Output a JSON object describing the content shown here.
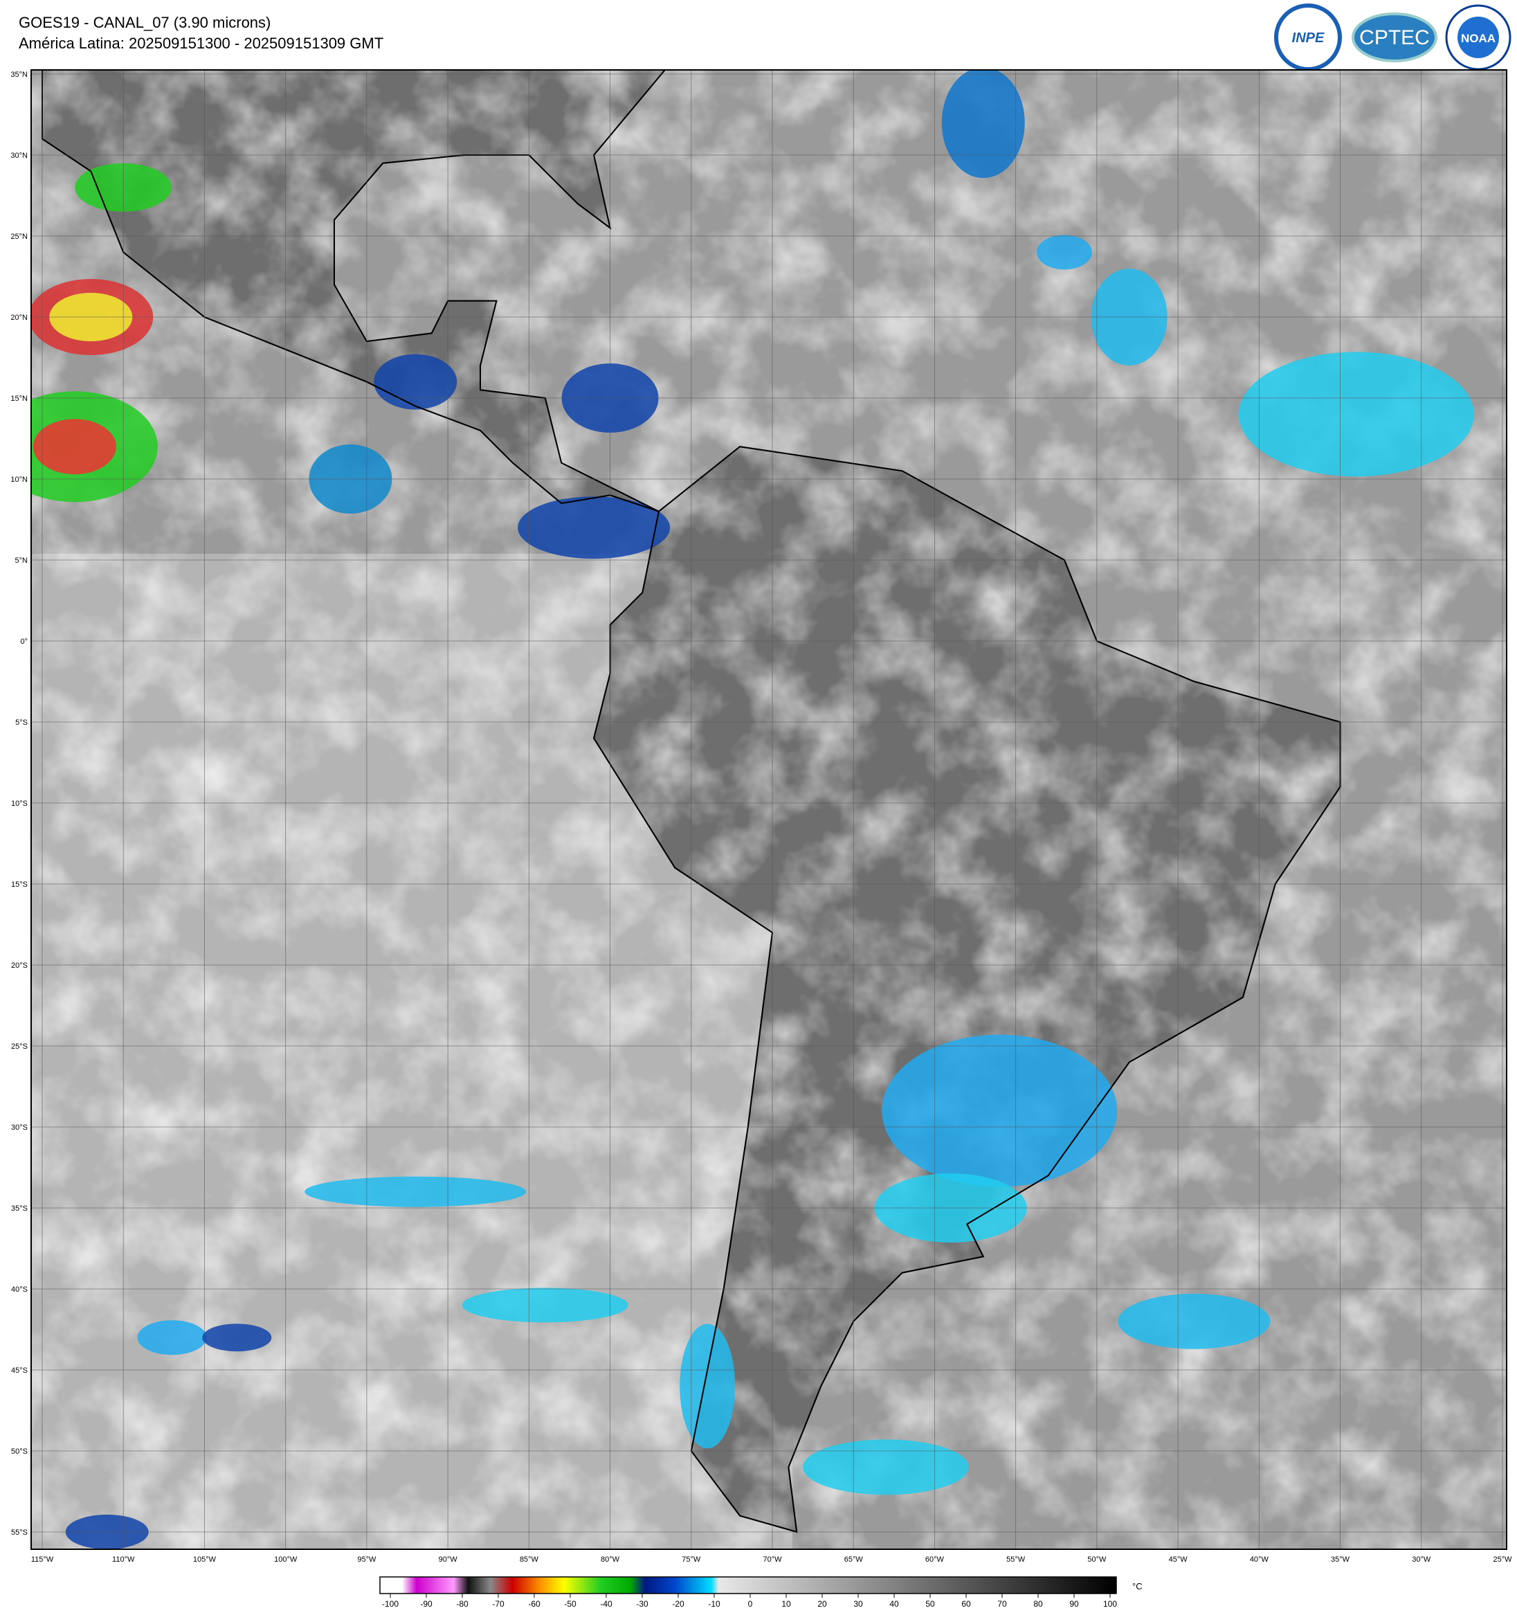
{
  "header": {
    "title": "GOES19 - CANAL_07 (3.90 microns)",
    "subtitle": "América Latina: 202509151300 - 202509151309 GMT"
  },
  "logos": [
    "INPE",
    "CPTEC",
    "NOAA"
  ],
  "map": {
    "lat_labels": [
      "35°N",
      "30°N",
      "25°N",
      "20°N",
      "15°N",
      "10°N",
      "5°N",
      "0°",
      "5°S",
      "10°S",
      "15°S",
      "20°S",
      "25°S",
      "30°S",
      "35°S",
      "40°S",
      "45°S",
      "50°S",
      "55°S"
    ],
    "lon_labels": [
      "115°W",
      "110°W",
      "105°W",
      "100°W",
      "95°W",
      "90°W",
      "85°W",
      "80°W",
      "75°W",
      "70°W",
      "65°W",
      "60°W",
      "55°W",
      "50°W",
      "45°W",
      "40°W",
      "35°W",
      "30°W",
      "25°W"
    ]
  },
  "colorbar": {
    "ticks": [
      -100,
      -90,
      -80,
      -70,
      -60,
      -50,
      -40,
      -30,
      -20,
      -10,
      0,
      10,
      20,
      30,
      40,
      50,
      60,
      70,
      80,
      90,
      100
    ],
    "unit": "°C"
  }
}
